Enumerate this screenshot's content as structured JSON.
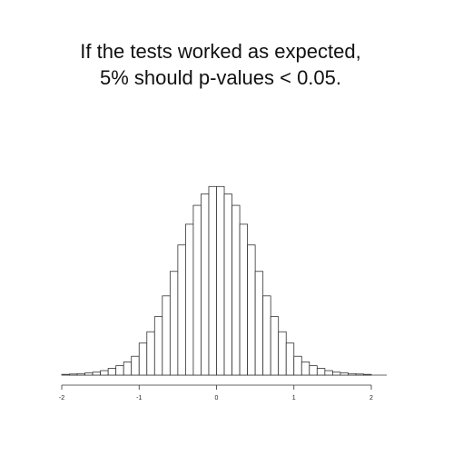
{
  "title_lines": [
    "If the tests worked as expected,",
    "5% should p-values < 0.05."
  ],
  "chart_data": {
    "type": "bar",
    "subtype": "histogram",
    "x_ticks": [
      -2,
      -1,
      0,
      1,
      2
    ],
    "xlim": [
      -2,
      2
    ],
    "bin_width": 0.1,
    "bins_start": -2.0,
    "values": [
      0.2,
      0.3,
      0.4,
      0.6,
      0.8,
      1.2,
      1.8,
      2.5,
      3.5,
      5.0,
      8.5,
      11.5,
      15.5,
      21.0,
      27.5,
      34.5,
      40.0,
      45.0,
      48.0,
      50.0,
      50.0,
      48.0,
      45.0,
      40.0,
      34.5,
      27.5,
      21.0,
      15.5,
      11.5,
      8.5,
      5.0,
      3.5,
      2.5,
      1.8,
      1.2,
      0.8,
      0.6,
      0.4,
      0.3,
      0.2
    ],
    "ylim": [
      0,
      52
    ],
    "grid": false,
    "colors": {
      "bar_fill": "#ffffff",
      "bar_stroke": "#333333",
      "axis": "#333333"
    }
  }
}
